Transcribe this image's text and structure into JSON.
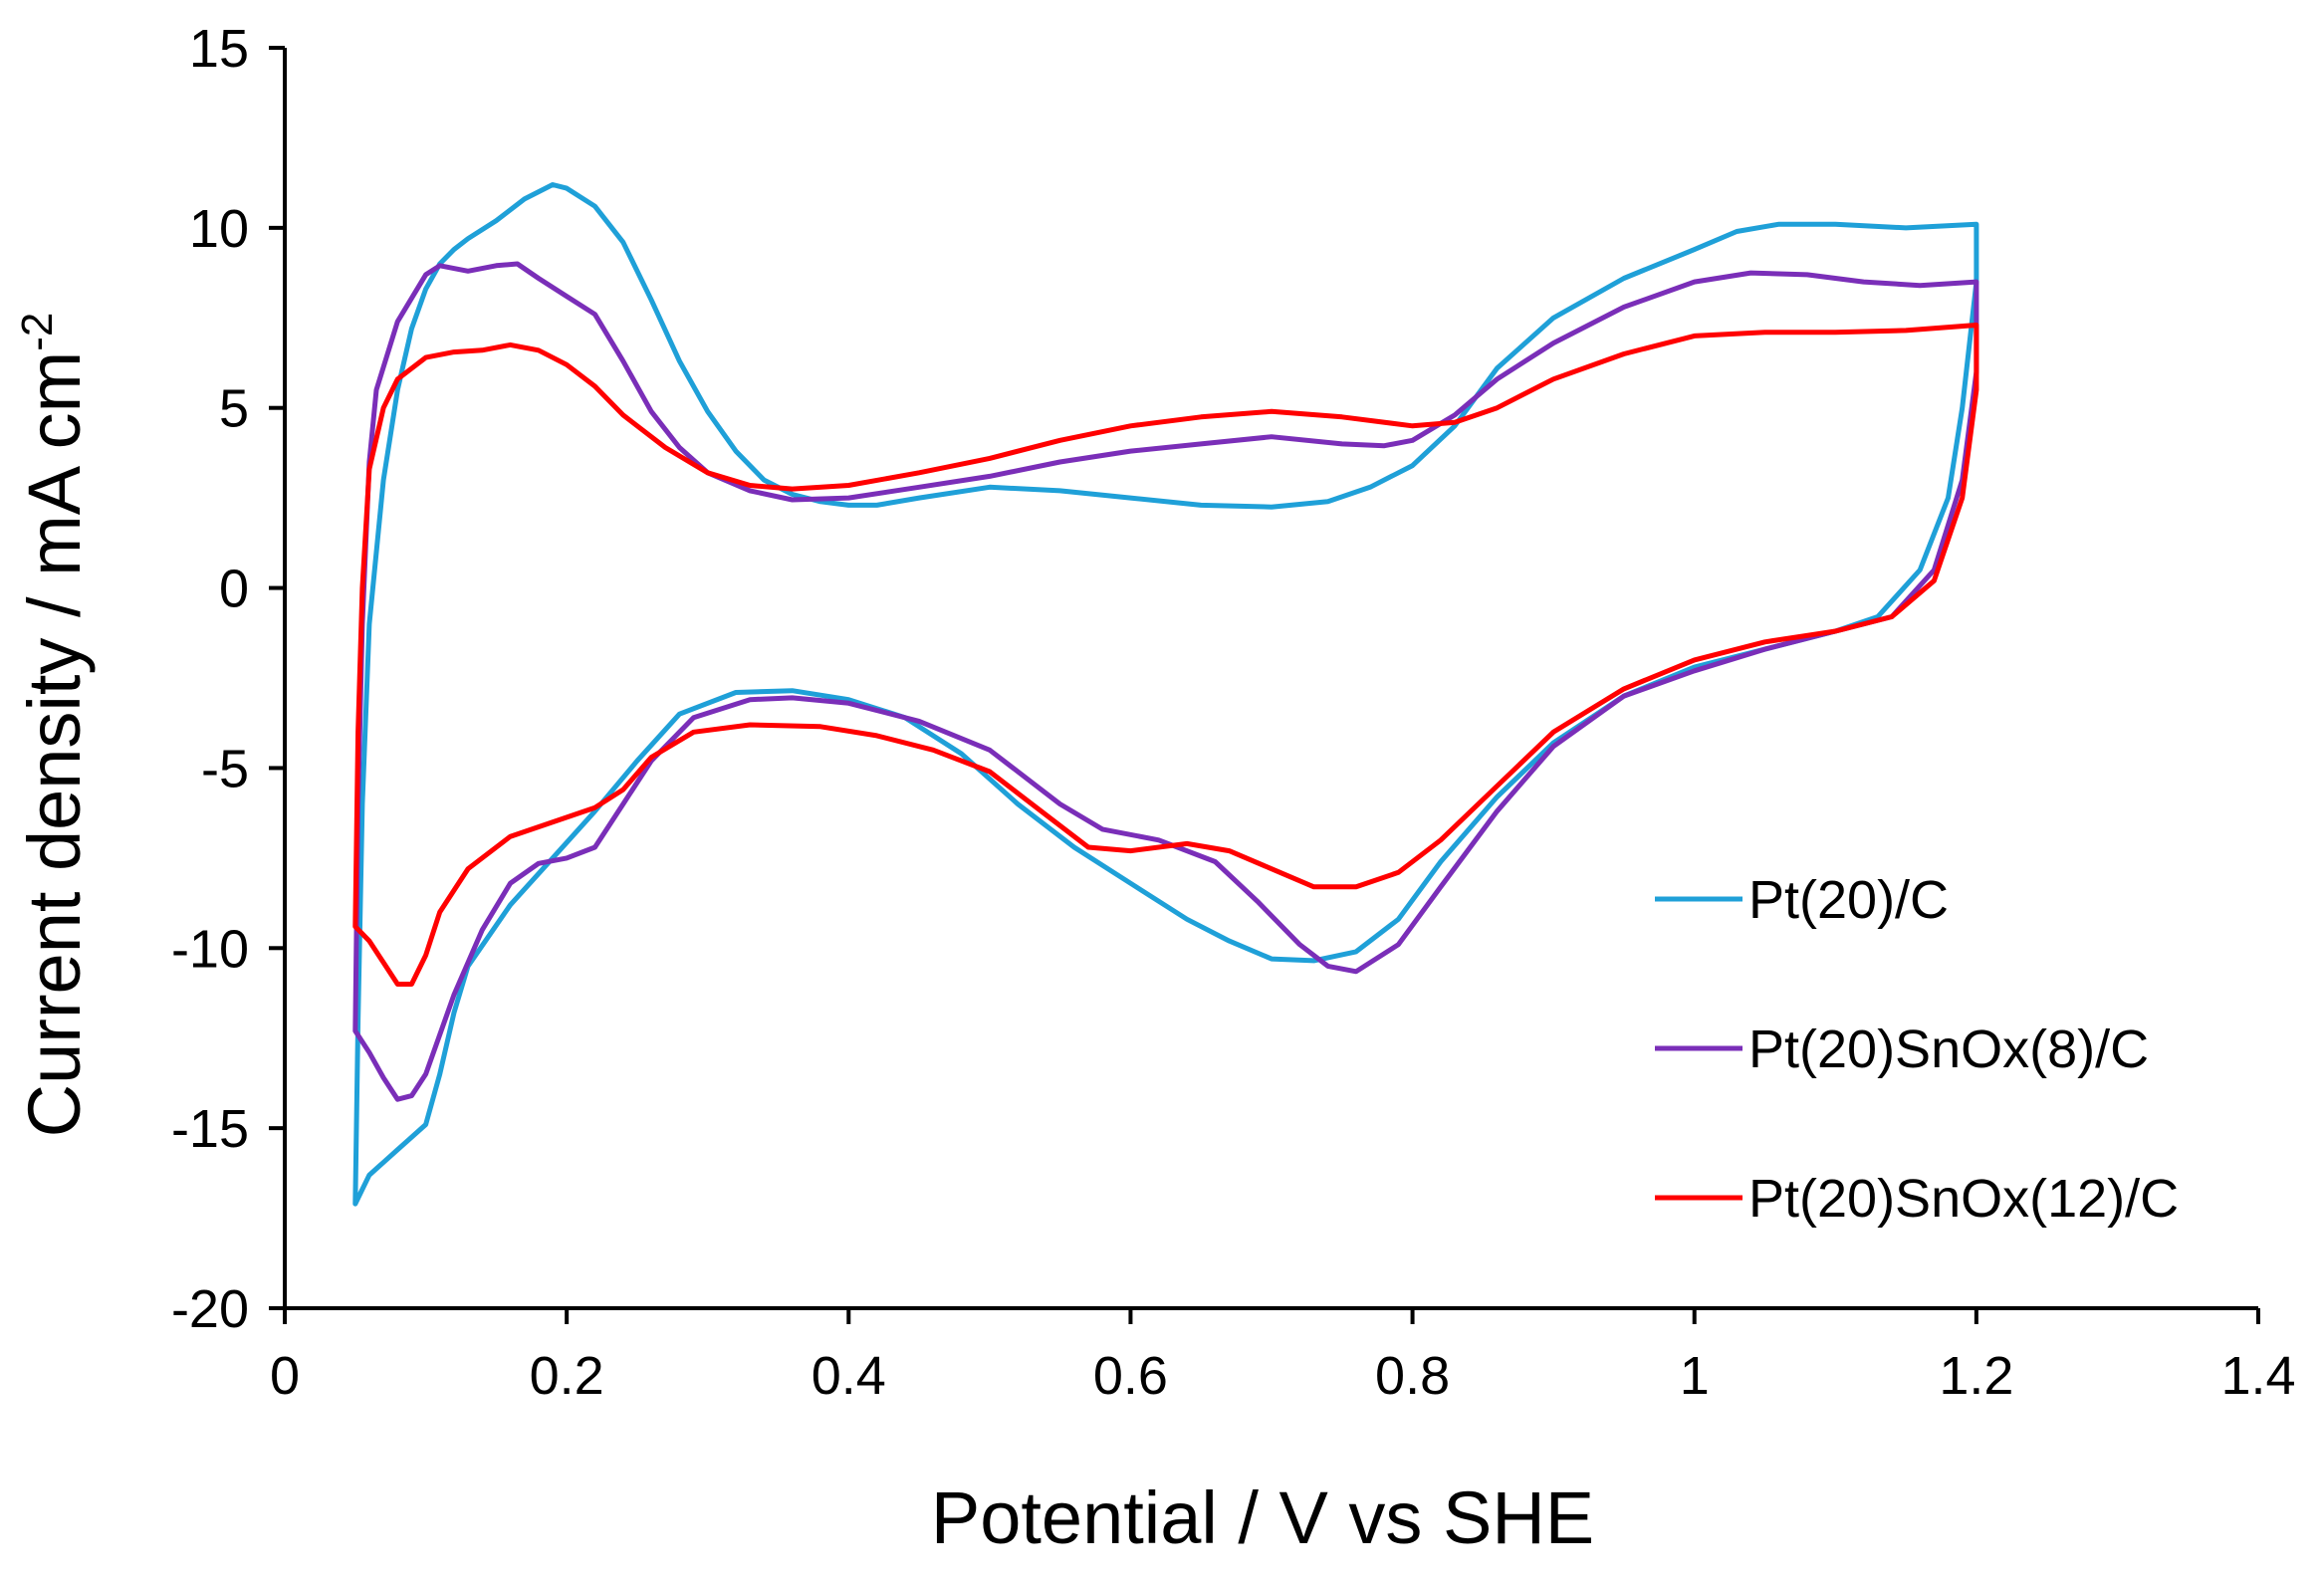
{
  "chart_data": {
    "type": "line",
    "title": "",
    "xlabel": "Potential / V vs SHE",
    "ylabel": {
      "text": "Current density / mA cm",
      "superscript": "-2"
    },
    "xlim": [
      0,
      1.4
    ],
    "ylim": [
      -20,
      15
    ],
    "xticks": [
      0,
      0.2,
      0.4,
      0.6,
      0.8,
      1,
      1.2,
      1.4
    ],
    "yticks": [
      -20,
      -15,
      -10,
      -5,
      0,
      5,
      10,
      15
    ],
    "xtick_labels": [
      "0",
      "0.2",
      "0.4",
      "0.6",
      "0.8",
      "1",
      "1.2",
      "1.4"
    ],
    "ytick_labels": [
      "-20",
      "-15",
      "-10",
      "-5",
      "0",
      "5",
      "10",
      "15"
    ],
    "grid": false,
    "legend_position": "right",
    "series": [
      {
        "name": "Pt(20)/C",
        "color": "#1fa0d8",
        "points": [
          [
            0.05,
            -17.1
          ],
          [
            0.052,
            -12.0
          ],
          [
            0.055,
            -6.0
          ],
          [
            0.06,
            -1.0
          ],
          [
            0.07,
            3.0
          ],
          [
            0.08,
            5.5
          ],
          [
            0.09,
            7.2
          ],
          [
            0.1,
            8.3
          ],
          [
            0.11,
            9.0
          ],
          [
            0.12,
            9.4
          ],
          [
            0.13,
            9.7
          ],
          [
            0.15,
            10.2
          ],
          [
            0.17,
            10.8
          ],
          [
            0.19,
            11.2
          ],
          [
            0.2,
            11.1
          ],
          [
            0.22,
            10.6
          ],
          [
            0.24,
            9.6
          ],
          [
            0.26,
            8.0
          ],
          [
            0.28,
            6.3
          ],
          [
            0.3,
            4.9
          ],
          [
            0.32,
            3.8
          ],
          [
            0.34,
            3.0
          ],
          [
            0.36,
            2.6
          ],
          [
            0.38,
            2.4
          ],
          [
            0.4,
            2.3
          ],
          [
            0.42,
            2.3
          ],
          [
            0.45,
            2.5
          ],
          [
            0.5,
            2.8
          ],
          [
            0.55,
            2.7
          ],
          [
            0.6,
            2.5
          ],
          [
            0.65,
            2.3
          ],
          [
            0.7,
            2.25
          ],
          [
            0.74,
            2.4
          ],
          [
            0.77,
            2.8
          ],
          [
            0.8,
            3.4
          ],
          [
            0.83,
            4.5
          ],
          [
            0.86,
            6.1
          ],
          [
            0.9,
            7.5
          ],
          [
            0.95,
            8.6
          ],
          [
            1.0,
            9.4
          ],
          [
            1.03,
            9.9
          ],
          [
            1.06,
            10.1
          ],
          [
            1.1,
            10.1
          ],
          [
            1.15,
            10.0
          ],
          [
            1.2,
            10.1
          ],
          [
            1.2,
            8.5
          ],
          [
            1.19,
            5.0
          ],
          [
            1.18,
            2.5
          ],
          [
            1.16,
            0.5
          ],
          [
            1.13,
            -0.8
          ],
          [
            1.1,
            -1.2
          ],
          [
            1.05,
            -1.7
          ],
          [
            1.0,
            -2.2
          ],
          [
            0.95,
            -3.0
          ],
          [
            0.9,
            -4.3
          ],
          [
            0.86,
            -5.8
          ],
          [
            0.82,
            -7.6
          ],
          [
            0.79,
            -9.2
          ],
          [
            0.76,
            -10.1
          ],
          [
            0.73,
            -10.35
          ],
          [
            0.7,
            -10.3
          ],
          [
            0.67,
            -9.8
          ],
          [
            0.64,
            -9.2
          ],
          [
            0.6,
            -8.2
          ],
          [
            0.56,
            -7.2
          ],
          [
            0.52,
            -6.0
          ],
          [
            0.48,
            -4.6
          ],
          [
            0.44,
            -3.6
          ],
          [
            0.4,
            -3.1
          ],
          [
            0.36,
            -2.85
          ],
          [
            0.32,
            -2.9
          ],
          [
            0.28,
            -3.5
          ],
          [
            0.25,
            -4.8
          ],
          [
            0.22,
            -6.2
          ],
          [
            0.19,
            -7.5
          ],
          [
            0.16,
            -8.8
          ],
          [
            0.13,
            -10.5
          ],
          [
            0.12,
            -11.8
          ],
          [
            0.11,
            -13.5
          ],
          [
            0.1,
            -14.9
          ],
          [
            0.08,
            -15.6
          ],
          [
            0.06,
            -16.3
          ],
          [
            0.05,
            -17.1
          ]
        ]
      },
      {
        "name": "Pt(20)SnOx(8)/C",
        "color": "#7a2eb8",
        "points": [
          [
            0.05,
            -12.3
          ],
          [
            0.052,
            -6.0
          ],
          [
            0.055,
            -1.0
          ],
          [
            0.06,
            3.5
          ],
          [
            0.065,
            5.5
          ],
          [
            0.08,
            7.4
          ],
          [
            0.1,
            8.7
          ],
          [
            0.11,
            8.95
          ],
          [
            0.13,
            8.8
          ],
          [
            0.15,
            8.95
          ],
          [
            0.165,
            9.0
          ],
          [
            0.18,
            8.6
          ],
          [
            0.2,
            8.1
          ],
          [
            0.22,
            7.6
          ],
          [
            0.24,
            6.3
          ],
          [
            0.26,
            4.9
          ],
          [
            0.28,
            3.9
          ],
          [
            0.3,
            3.2
          ],
          [
            0.33,
            2.7
          ],
          [
            0.36,
            2.45
          ],
          [
            0.4,
            2.5
          ],
          [
            0.45,
            2.8
          ],
          [
            0.5,
            3.1
          ],
          [
            0.55,
            3.5
          ],
          [
            0.6,
            3.8
          ],
          [
            0.65,
            4.0
          ],
          [
            0.7,
            4.2
          ],
          [
            0.75,
            4.0
          ],
          [
            0.78,
            3.95
          ],
          [
            0.8,
            4.1
          ],
          [
            0.83,
            4.8
          ],
          [
            0.86,
            5.8
          ],
          [
            0.9,
            6.8
          ],
          [
            0.95,
            7.8
          ],
          [
            1.0,
            8.5
          ],
          [
            1.04,
            8.75
          ],
          [
            1.08,
            8.7
          ],
          [
            1.12,
            8.5
          ],
          [
            1.16,
            8.4
          ],
          [
            1.2,
            8.5
          ],
          [
            1.2,
            6.0
          ],
          [
            1.19,
            3.0
          ],
          [
            1.17,
            0.5
          ],
          [
            1.14,
            -0.8
          ],
          [
            1.1,
            -1.2
          ],
          [
            1.05,
            -1.7
          ],
          [
            1.0,
            -2.3
          ],
          [
            0.95,
            -3.0
          ],
          [
            0.9,
            -4.4
          ],
          [
            0.86,
            -6.2
          ],
          [
            0.82,
            -8.3
          ],
          [
            0.79,
            -9.9
          ],
          [
            0.76,
            -10.65
          ],
          [
            0.74,
            -10.5
          ],
          [
            0.72,
            -9.9
          ],
          [
            0.69,
            -8.7
          ],
          [
            0.66,
            -7.6
          ],
          [
            0.62,
            -7.0
          ],
          [
            0.58,
            -6.7
          ],
          [
            0.55,
            -6.0
          ],
          [
            0.5,
            -4.5
          ],
          [
            0.45,
            -3.7
          ],
          [
            0.4,
            -3.2
          ],
          [
            0.36,
            -3.05
          ],
          [
            0.33,
            -3.1
          ],
          [
            0.29,
            -3.6
          ],
          [
            0.26,
            -4.8
          ],
          [
            0.24,
            -6.0
          ],
          [
            0.22,
            -7.2
          ],
          [
            0.2,
            -7.5
          ],
          [
            0.18,
            -7.65
          ],
          [
            0.16,
            -8.2
          ],
          [
            0.14,
            -9.5
          ],
          [
            0.12,
            -11.3
          ],
          [
            0.1,
            -13.5
          ],
          [
            0.09,
            -14.1
          ],
          [
            0.08,
            -14.2
          ],
          [
            0.07,
            -13.6
          ],
          [
            0.06,
            -12.9
          ],
          [
            0.05,
            -12.3
          ]
        ]
      },
      {
        "name": "Pt(20)SnOx(12)/C",
        "color": "#ff0000",
        "points": [
          [
            0.05,
            -9.4
          ],
          [
            0.052,
            -4.0
          ],
          [
            0.055,
            0.0
          ],
          [
            0.06,
            3.3
          ],
          [
            0.07,
            5.0
          ],
          [
            0.08,
            5.8
          ],
          [
            0.1,
            6.4
          ],
          [
            0.12,
            6.55
          ],
          [
            0.14,
            6.6
          ],
          [
            0.16,
            6.75
          ],
          [
            0.18,
            6.6
          ],
          [
            0.2,
            6.2
          ],
          [
            0.22,
            5.6
          ],
          [
            0.24,
            4.8
          ],
          [
            0.27,
            3.9
          ],
          [
            0.3,
            3.2
          ],
          [
            0.33,
            2.85
          ],
          [
            0.36,
            2.75
          ],
          [
            0.4,
            2.85
          ],
          [
            0.45,
            3.2
          ],
          [
            0.5,
            3.6
          ],
          [
            0.55,
            4.1
          ],
          [
            0.6,
            4.5
          ],
          [
            0.65,
            4.75
          ],
          [
            0.7,
            4.9
          ],
          [
            0.75,
            4.75
          ],
          [
            0.8,
            4.5
          ],
          [
            0.83,
            4.6
          ],
          [
            0.86,
            5.0
          ],
          [
            0.9,
            5.8
          ],
          [
            0.95,
            6.5
          ],
          [
            1.0,
            7.0
          ],
          [
            1.05,
            7.1
          ],
          [
            1.1,
            7.1
          ],
          [
            1.15,
            7.15
          ],
          [
            1.2,
            7.3
          ],
          [
            1.2,
            5.5
          ],
          [
            1.19,
            2.5
          ],
          [
            1.17,
            0.2
          ],
          [
            1.14,
            -0.8
          ],
          [
            1.1,
            -1.2
          ],
          [
            1.05,
            -1.5
          ],
          [
            1.0,
            -2.0
          ],
          [
            0.95,
            -2.8
          ],
          [
            0.9,
            -4.0
          ],
          [
            0.86,
            -5.5
          ],
          [
            0.82,
            -7.0
          ],
          [
            0.79,
            -7.9
          ],
          [
            0.76,
            -8.3
          ],
          [
            0.73,
            -8.3
          ],
          [
            0.7,
            -7.8
          ],
          [
            0.67,
            -7.3
          ],
          [
            0.64,
            -7.1
          ],
          [
            0.6,
            -7.3
          ],
          [
            0.57,
            -7.2
          ],
          [
            0.54,
            -6.3
          ],
          [
            0.5,
            -5.1
          ],
          [
            0.46,
            -4.5
          ],
          [
            0.42,
            -4.1
          ],
          [
            0.38,
            -3.85
          ],
          [
            0.33,
            -3.8
          ],
          [
            0.29,
            -4.0
          ],
          [
            0.26,
            -4.7
          ],
          [
            0.24,
            -5.6
          ],
          [
            0.22,
            -6.1
          ],
          [
            0.19,
            -6.5
          ],
          [
            0.16,
            -6.9
          ],
          [
            0.13,
            -7.8
          ],
          [
            0.11,
            -9.0
          ],
          [
            0.1,
            -10.2
          ],
          [
            0.09,
            -11.0
          ],
          [
            0.08,
            -11.0
          ],
          [
            0.07,
            -10.4
          ],
          [
            0.06,
            -9.8
          ],
          [
            0.05,
            -9.4
          ]
        ]
      }
    ]
  }
}
